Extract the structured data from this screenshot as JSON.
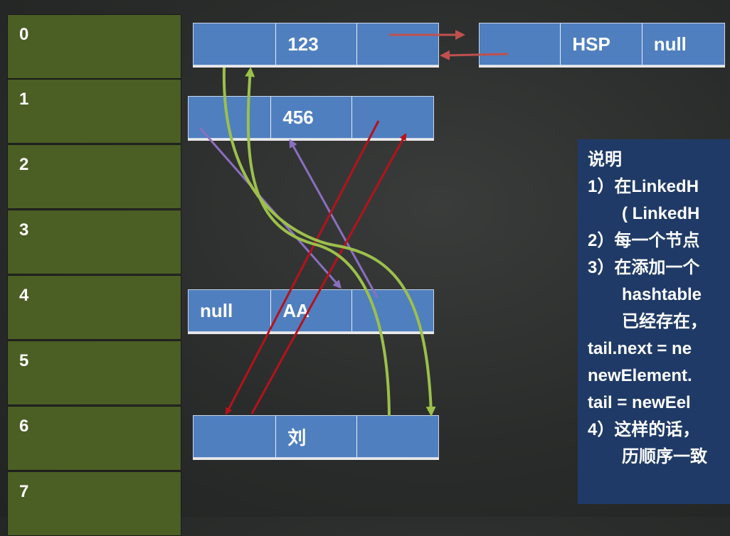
{
  "table": {
    "slots": [
      "0",
      "1",
      "2",
      "3",
      "4",
      "5",
      "6",
      "7"
    ]
  },
  "nodes": {
    "n123": [
      "",
      "123",
      ""
    ],
    "nHSP": [
      "",
      "HSP",
      "null"
    ],
    "n456": [
      "",
      "456",
      ""
    ],
    "nAA": [
      "null",
      "AA",
      ""
    ],
    "nLiu": [
      "",
      "刘",
      ""
    ]
  },
  "description": {
    "title": "说明",
    "lines": [
      "1）在LinkedH",
      "( LinkedH",
      "2）每一个节点",
      "3）在添加一个",
      "hashtable",
      "已经存在，",
      "tail.next = ne",
      "newElement.",
      "tail = newEel",
      "",
      "4）这样的话，",
      "历顺序一致"
    ]
  },
  "colors": {
    "slot_bg": "#4b5e24",
    "node_bg": "#4f7fbf",
    "arrow_red": "#b5121b",
    "arrow_green": "#9cc04b",
    "arrow_purple": "#8a6fc0",
    "arrow_hsp": "#c0504d",
    "desc_bg": "#1f3a66"
  }
}
